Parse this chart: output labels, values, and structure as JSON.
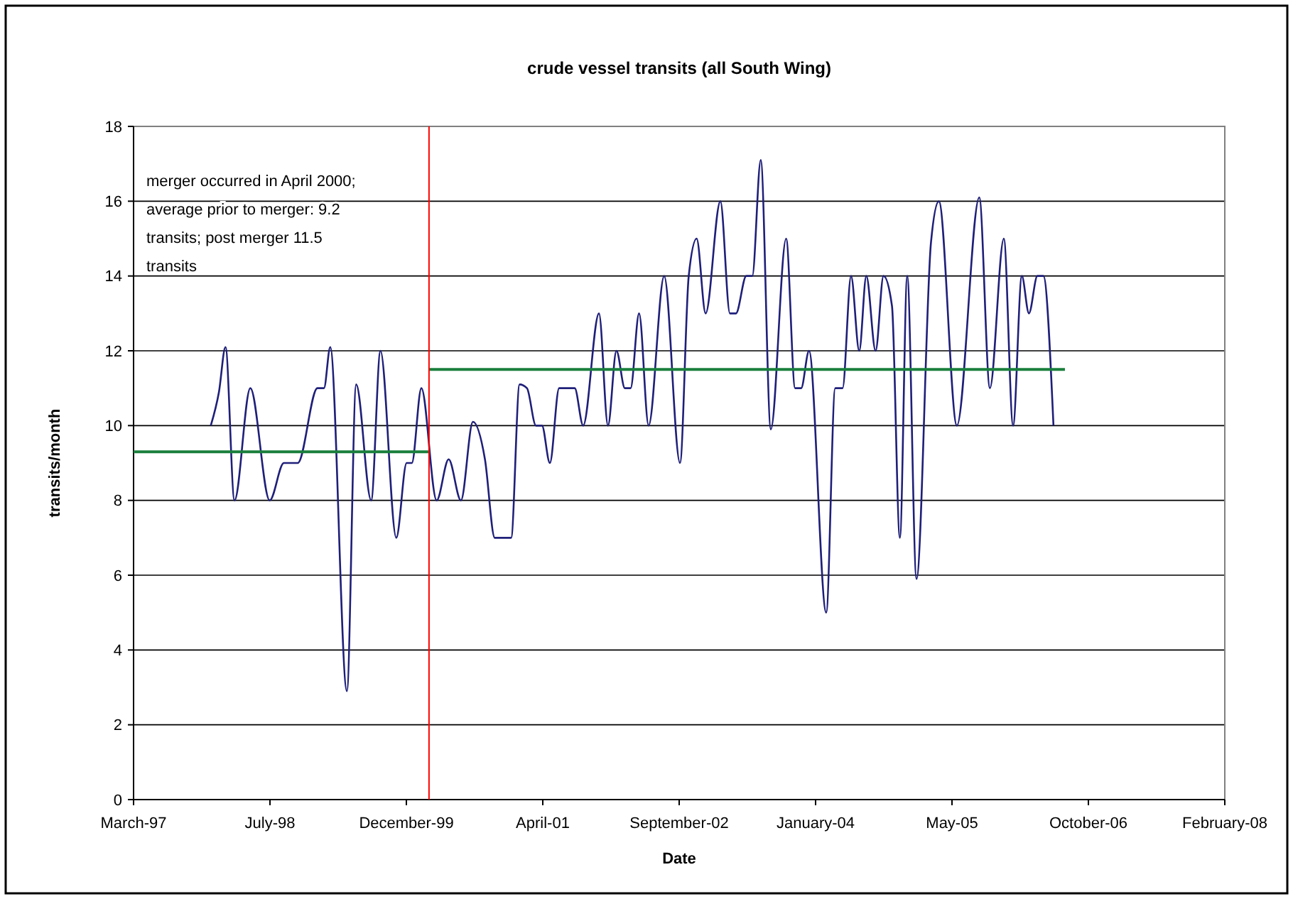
{
  "chart_data": {
    "type": "line",
    "title": "crude vessel transits (all South Wing)",
    "xlabel": "Date",
    "ylabel": "transits/month",
    "annotations": [
      "merger occurred in April 2000; average prior to merger: 9.2 transits; post merger 11.5 transits"
    ],
    "xlim": [
      "1997-03-14",
      "2008-02-25"
    ],
    "xticks": [
      {
        "value": "1997-03-14",
        "label": "March-97"
      },
      {
        "value": "1998-07-27",
        "label": "July-98"
      },
      {
        "value": "1999-12-09",
        "label": "December-99"
      },
      {
        "value": "2001-04-22",
        "label": "April-01"
      },
      {
        "value": "2002-09-04",
        "label": "September-02"
      },
      {
        "value": "2004-01-17",
        "label": "January-04"
      },
      {
        "value": "2005-05-31",
        "label": "May-05"
      },
      {
        "value": "2006-10-13",
        "label": "October-06"
      },
      {
        "value": "2008-02-25",
        "label": "February-08"
      }
    ],
    "ylim": [
      0,
      18
    ],
    "yticks": [
      0,
      2,
      4,
      6,
      8,
      10,
      12,
      14,
      16,
      18
    ],
    "grid": "y",
    "ref_lines": [
      {
        "axis": "x",
        "value": "2000-03-01",
        "color": "#ff0000"
      }
    ],
    "series": [
      {
        "color": "#1f1f7a",
        "x": [
          "1997-12-22",
          "1998-01-21",
          "1998-02-14",
          "1998-03-19",
          "1998-05-16",
          "1998-07-26",
          "1998-09-16",
          "1998-11-06",
          "1999-01-17",
          "1999-02-10",
          "1999-03-05",
          "1999-05-05",
          "1999-06-08",
          "1999-08-02",
          "1999-09-05",
          "1999-11-02",
          "1999-12-10",
          "1999-12-29",
          "2000-02-02",
          "2000-03-29",
          "2000-05-12",
          "2000-06-26",
          "2000-08-09",
          "2000-09-22",
          "2000-10-28",
          "2000-12-27",
          "2001-01-27",
          "2001-02-23",
          "2001-03-28",
          "2001-04-19",
          "2001-05-18",
          "2001-06-21",
          "2001-08-17",
          "2001-09-17",
          "2001-11-14",
          "2001-12-17",
          "2002-01-17",
          "2002-02-17",
          "2002-03-10",
          "2002-04-10",
          "2002-05-15",
          "2002-07-11",
          "2002-09-07",
          "2002-10-09",
          "2002-11-07",
          "2002-12-10",
          "2003-02-02",
          "2003-03-09",
          "2003-03-31",
          "2003-05-08",
          "2003-05-30",
          "2003-06-30",
          "2003-08-06",
          "2003-10-01",
          "2003-11-03",
          "2003-11-25",
          "2003-12-24",
          "2004-02-25",
          "2004-03-29",
          "2004-04-25",
          "2004-05-26",
          "2004-06-25",
          "2004-07-21",
          "2004-08-24",
          "2004-09-22",
          "2004-10-23",
          "2004-11-21",
          "2004-12-18",
          "2005-01-21",
          "2005-03-15",
          "2005-04-13",
          "2005-06-18",
          "2005-09-08",
          "2005-10-17",
          "2005-12-07",
          "2006-01-10",
          "2006-02-11",
          "2006-03-09",
          "2006-04-09",
          "2006-05-01",
          "2006-06-07"
        ],
        "values": [
          10,
          10.9,
          12.1,
          8,
          11,
          8,
          9,
          9,
          11,
          11,
          12.1,
          2.9,
          11.1,
          8,
          12,
          7,
          9,
          9,
          11,
          8,
          9.1,
          8,
          10.1,
          9.1,
          7,
          7,
          11.1,
          11,
          10,
          10,
          9,
          11,
          11,
          10,
          13,
          10,
          12,
          11,
          11,
          13,
          10,
          14,
          9,
          14,
          15,
          13,
          16,
          13,
          13,
          14,
          14,
          17.1,
          9.9,
          15,
          11,
          11,
          12,
          5,
          11,
          11,
          14,
          12,
          14,
          12,
          14,
          13.2,
          7,
          14,
          5.9,
          14.9,
          16,
          10,
          16.1,
          11,
          15,
          10,
          14,
          13,
          14,
          14,
          10
        ]
      },
      {
        "color": "#1a7f3c",
        "x": [
          "1997-03-14",
          "2000-03-01"
        ],
        "values": [
          9.3,
          9.3
        ]
      },
      {
        "color": "#1a7f3c",
        "x": [
          "2000-03-01",
          "2006-07-19"
        ],
        "values": [
          11.5,
          11.5
        ]
      }
    ]
  }
}
